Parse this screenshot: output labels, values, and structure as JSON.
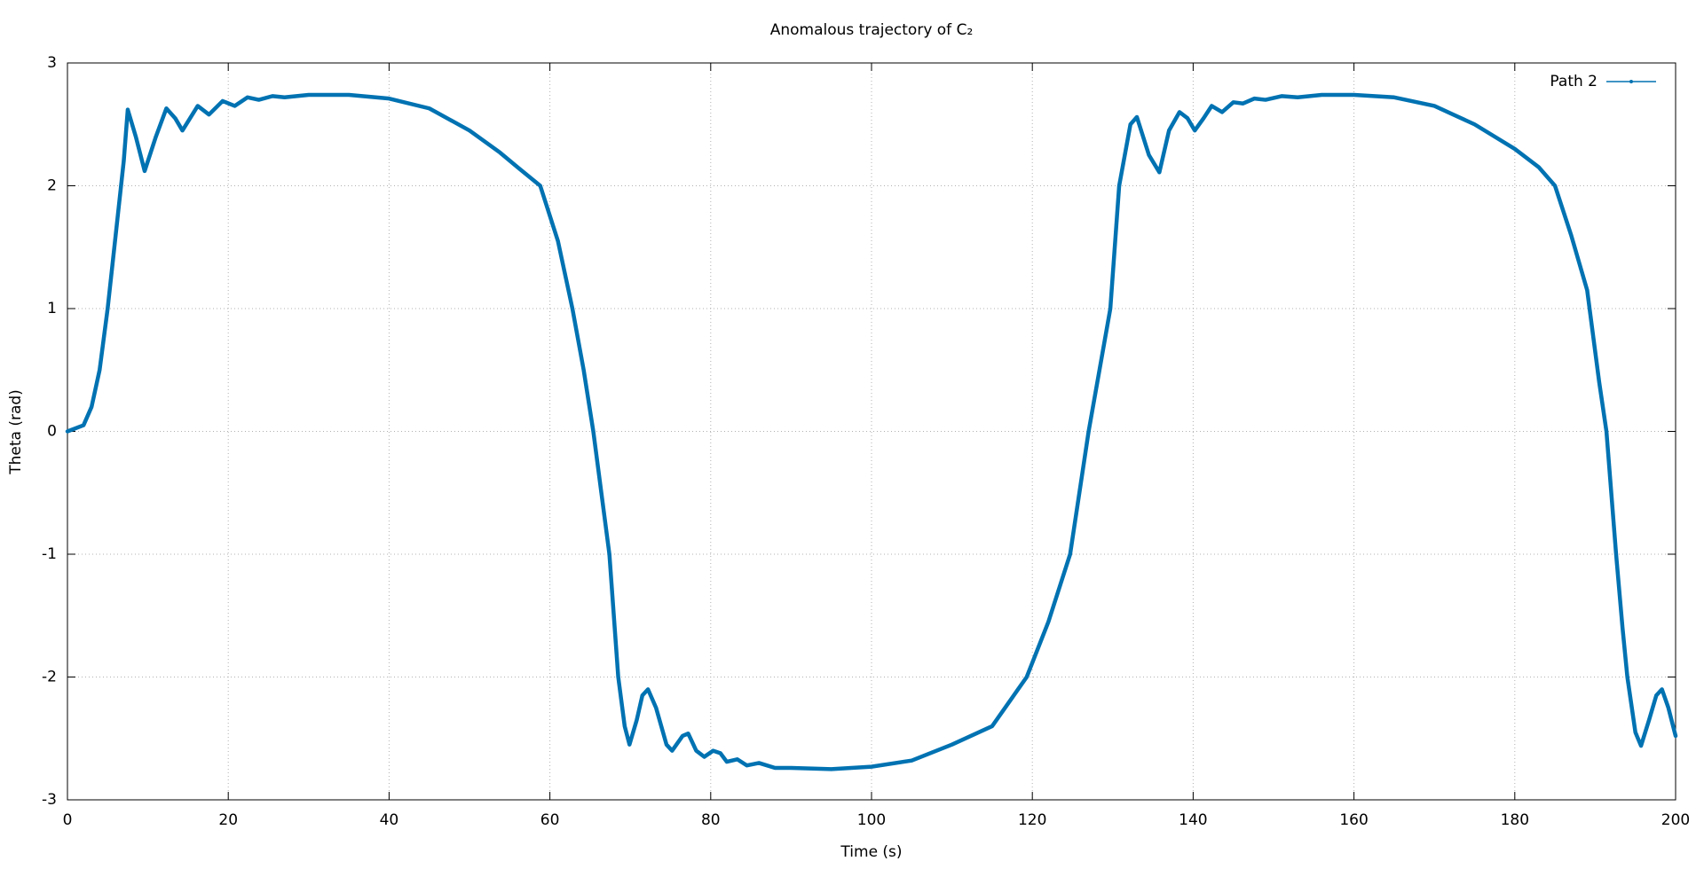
{
  "chart_data": {
    "type": "line",
    "title": "Anomalous trajectory of C₂",
    "x_label": "Time (s)",
    "y_label": "Theta (rad)",
    "x": [
      0,
      2,
      3,
      4,
      5,
      6,
      7,
      7.5,
      8.5,
      9.6,
      11,
      12.3,
      13.4,
      14.3,
      16.2,
      17.6,
      19.3,
      20.8,
      22.4,
      23.8,
      25.5,
      27,
      30,
      35,
      40,
      45,
      50,
      53.8,
      56,
      58.8,
      61,
      62.8,
      64.2,
      65.4,
      66.4,
      67.4,
      68.5,
      69.3,
      69.9,
      70.8,
      71.5,
      72.2,
      73.2,
      74.5,
      75.2,
      76.5,
      77.2,
      78.2,
      79.2,
      80.3,
      81.2,
      82,
      83.3,
      84.5,
      86,
      88,
      90,
      95,
      100,
      105,
      110,
      115,
      119.3,
      122,
      124.7,
      127,
      129.7,
      130.8,
      132.2,
      133,
      134.5,
      135.8,
      137,
      138.3,
      139.3,
      140.2,
      141.3,
      142.3,
      143.6,
      145,
      146.2,
      147.6,
      149,
      151,
      153,
      156,
      160,
      165,
      170,
      175,
      180,
      183,
      185,
      187,
      189,
      190.5,
      191.4,
      192.6,
      193.4,
      194,
      195,
      195.7,
      196.7,
      197.6,
      198.3,
      199.1,
      200
    ],
    "series": [
      {
        "name": "Path 2",
        "color": "#0072b2",
        "values": [
          0,
          0.05,
          0.2,
          0.5,
          1.0,
          1.6,
          2.2,
          2.62,
          2.4,
          2.12,
          2.4,
          2.63,
          2.55,
          2.45,
          2.65,
          2.58,
          2.69,
          2.65,
          2.72,
          2.7,
          2.73,
          2.72,
          2.74,
          2.74,
          2.71,
          2.63,
          2.45,
          2.27,
          2.15,
          2.0,
          1.55,
          1.0,
          0.5,
          0,
          -0.5,
          -1.0,
          -2.0,
          -2.4,
          -2.55,
          -2.35,
          -2.15,
          -2.1,
          -2.25,
          -2.55,
          -2.6,
          -2.48,
          -2.46,
          -2.6,
          -2.65,
          -2.6,
          -2.62,
          -2.69,
          -2.67,
          -2.72,
          -2.7,
          -2.74,
          -2.74,
          -2.75,
          -2.73,
          -2.68,
          -2.55,
          -2.4,
          -2.0,
          -1.55,
          -1.0,
          0,
          1.0,
          2.0,
          2.5,
          2.56,
          2.25,
          2.11,
          2.45,
          2.6,
          2.55,
          2.45,
          2.55,
          2.65,
          2.6,
          2.68,
          2.67,
          2.71,
          2.7,
          2.73,
          2.72,
          2.74,
          2.74,
          2.72,
          2.65,
          2.5,
          2.3,
          2.15,
          2.0,
          1.6,
          1.15,
          0.4,
          0,
          -1.0,
          -1.6,
          -2.0,
          -2.45,
          -2.56,
          -2.35,
          -2.15,
          -2.1,
          -2.25,
          -2.48
        ]
      }
    ],
    "xlim": [
      0,
      200
    ],
    "xticks": [
      0,
      20,
      40,
      60,
      80,
      100,
      120,
      140,
      160,
      180,
      200
    ],
    "ylim": [
      -3,
      3
    ],
    "yticks": [
      -3,
      -2,
      -1,
      0,
      1,
      2,
      3
    ],
    "grid": true,
    "legend": "top-right"
  }
}
